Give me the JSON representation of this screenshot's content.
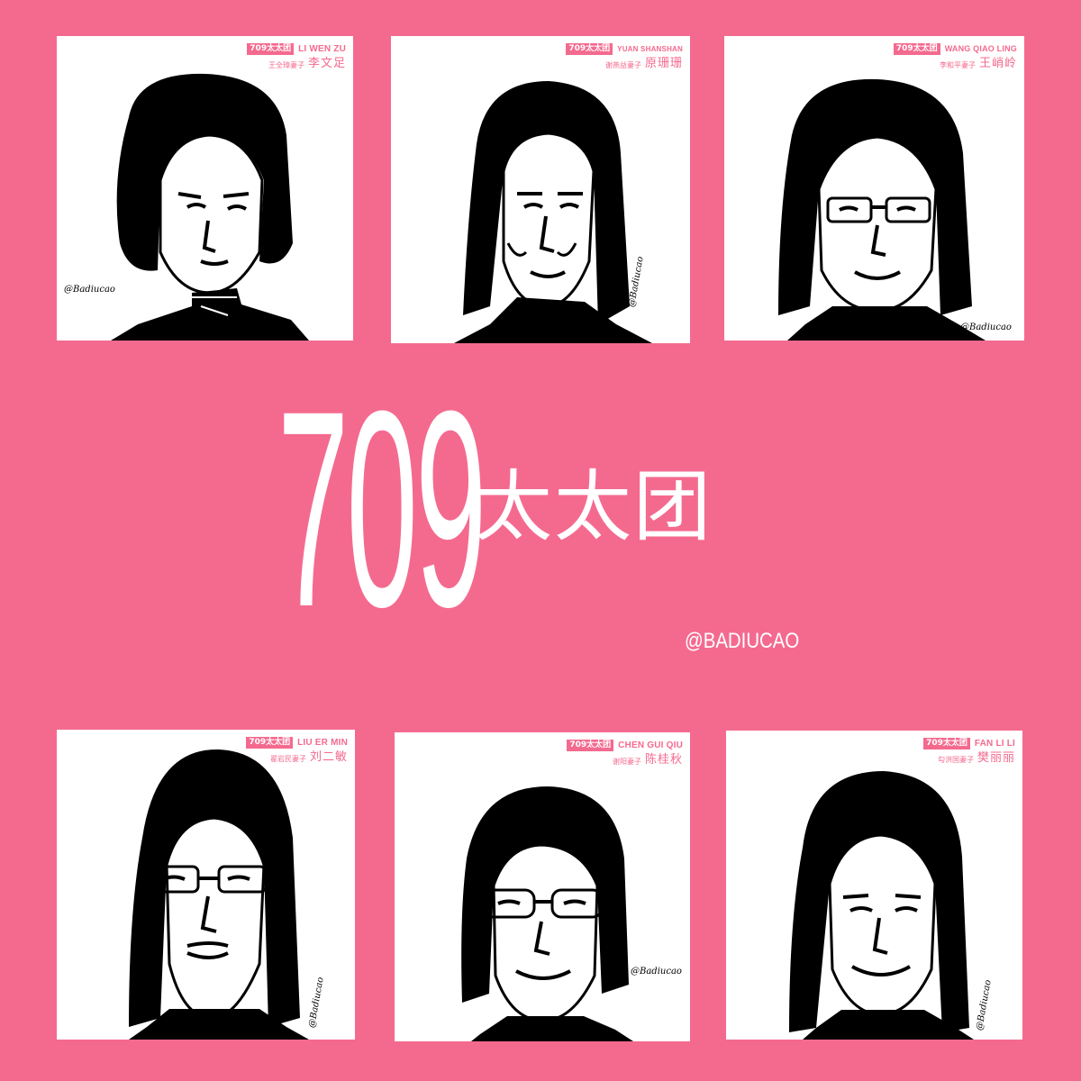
{
  "title": {
    "number": "709",
    "chinese": "太太团",
    "handle": "@BADIUCAO"
  },
  "portraits": [
    {
      "badge": "709太太团",
      "name_en": "LI WEN ZU",
      "sub": "王全璋妻子",
      "name_cn": "李文足",
      "signature": "@Badiucao"
    },
    {
      "badge": "709太太团",
      "name_en": "YUAN SHANSHAN",
      "sub": "谢燕益妻子",
      "name_cn": "原珊珊",
      "signature": "@Badiucao"
    },
    {
      "badge": "709太太团",
      "name_en": "WANG QIAO LING",
      "sub": "李和平妻子",
      "name_cn": "王峭岭",
      "signature": "@Badiucao"
    },
    {
      "badge": "709太太团",
      "name_en": "LIU ER MIN",
      "sub": "翟岩民妻子",
      "name_cn": "刘二敏",
      "signature": "@Badiucao"
    },
    {
      "badge": "709太太团",
      "name_en": "CHEN GUI QIU",
      "sub": "谢阳妻子",
      "name_cn": "陈桂秋",
      "signature": "@Badiucao"
    },
    {
      "badge": "709太太团",
      "name_en": "FAN LI LI",
      "sub": "勾洪国妻子",
      "name_cn": "樊丽丽",
      "signature": "@Badiucao"
    }
  ]
}
